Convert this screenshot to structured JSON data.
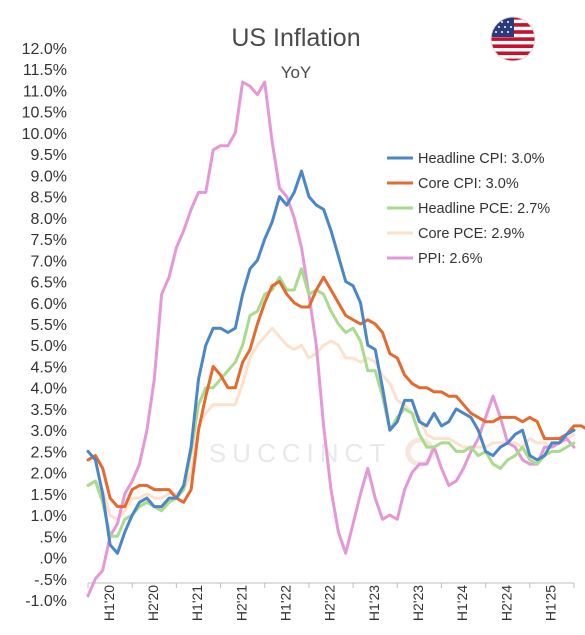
{
  "chart_data": {
    "type": "line",
    "title": "US Inflation",
    "subtitle": "YoY",
    "ylim": [
      -1.0,
      12.0
    ],
    "y_ticks": [
      "-1.0%",
      "-.5%",
      ".0%",
      ".5%",
      "1.0%",
      "1.5%",
      "2.0%",
      "2.5%",
      "3.0%",
      "3.5%",
      "4.0%",
      "4.5%",
      "5.0%",
      "5.5%",
      "6.0%",
      "6.5%",
      "7.0%",
      "7.5%",
      "8.0%",
      "8.5%",
      "9.0%",
      "9.5%",
      "10.0%",
      "10.5%",
      "11.0%",
      "11.5%",
      "12.0%"
    ],
    "y_tick_values": [
      -1.0,
      -0.5,
      0.0,
      0.5,
      1.0,
      1.5,
      2.0,
      2.5,
      3.0,
      3.5,
      4.0,
      4.5,
      5.0,
      5.5,
      6.0,
      6.5,
      7.0,
      7.5,
      8.0,
      8.5,
      9.0,
      9.5,
      10.0,
      10.5,
      11.0,
      11.5,
      12.0
    ],
    "x_ticks": [
      "H1'20",
      "H2'20",
      "H1'21",
      "H2'21",
      "H1'22",
      "H2'22",
      "H1'23",
      "H2'23",
      "H1'24",
      "H2'24",
      "H1'25"
    ],
    "x_tick_months": [
      3,
      9,
      15,
      21,
      27,
      33,
      39,
      45,
      51,
      57,
      63
    ],
    "x_month_range": [
      0,
      66
    ],
    "legend_position": "top-right",
    "watermark": "SUCCINCT",
    "series": [
      {
        "name": "Headline CPI: 3.0%",
        "color": "#4a86c8",
        "values": [
          2.5,
          2.3,
          1.5,
          0.3,
          0.1,
          0.6,
          1.0,
          1.3,
          1.4,
          1.2,
          1.2,
          1.4,
          1.4,
          1.7,
          2.6,
          4.2,
          5.0,
          5.4,
          5.4,
          5.3,
          5.4,
          6.2,
          6.8,
          7.0,
          7.5,
          7.9,
          8.5,
          8.3,
          8.6,
          9.1,
          8.5,
          8.3,
          8.2,
          7.7,
          7.1,
          6.5,
          6.4,
          6.0,
          5.0,
          4.9,
          4.0,
          3.0,
          3.2,
          3.7,
          3.7,
          3.2,
          3.1,
          3.4,
          3.1,
          3.2,
          3.5,
          3.4,
          3.3,
          3.0,
          2.5,
          2.4,
          2.6,
          2.7,
          2.9,
          3.0,
          2.4,
          2.3,
          2.4,
          2.7,
          2.7,
          2.9,
          3.0
        ],
        "label": "Headline CPI: 3.0%"
      },
      {
        "name": "Core CPI: 3.0%",
        "color": "#e46a2e",
        "values": [
          2.3,
          2.4,
          2.1,
          1.4,
          1.2,
          1.2,
          1.6,
          1.7,
          1.7,
          1.6,
          1.6,
          1.6,
          1.4,
          1.3,
          1.6,
          3.0,
          3.8,
          4.5,
          4.3,
          4.0,
          4.0,
          4.6,
          4.9,
          5.5,
          6.0,
          6.4,
          6.5,
          6.2,
          6.0,
          5.9,
          5.9,
          6.3,
          6.6,
          6.3,
          6.0,
          5.7,
          5.6,
          5.5,
          5.6,
          5.5,
          5.3,
          4.8,
          4.7,
          4.3,
          4.1,
          4.0,
          4.0,
          3.9,
          3.9,
          3.8,
          3.8,
          3.6,
          3.4,
          3.3,
          3.2,
          3.2,
          3.3,
          3.3,
          3.3,
          3.2,
          3.3,
          3.2,
          2.8,
          2.8,
          2.8,
          2.9,
          3.1,
          3.1,
          3.0
        ],
        "label": "Core CPI: 3.0%"
      },
      {
        "name": "Headline PCE: 2.7%",
        "color": "#a9db8e",
        "values": [
          1.7,
          1.8,
          1.3,
          0.5,
          0.5,
          0.9,
          1.0,
          1.2,
          1.3,
          1.2,
          1.1,
          1.3,
          1.4,
          1.6,
          2.5,
          3.6,
          4.0,
          4.0,
          4.2,
          4.4,
          4.6,
          5.0,
          5.7,
          5.8,
          6.2,
          6.3,
          6.6,
          6.3,
          6.3,
          6.8,
          6.2,
          6.3,
          6.2,
          5.8,
          5.5,
          5.3,
          5.4,
          5.1,
          4.4,
          4.4,
          3.8,
          3.0,
          3.3,
          3.5,
          3.4,
          2.9,
          2.6,
          2.6,
          2.7,
          2.7,
          2.5,
          2.5,
          2.6,
          2.4,
          2.5,
          2.2,
          2.1,
          2.3,
          2.4,
          2.6,
          2.3,
          2.2,
          2.4,
          2.5,
          2.5,
          2.6,
          2.7
        ],
        "label": "Headline PCE: 2.7%"
      },
      {
        "name": "Core PCE: 2.9%",
        "color": "#fde1cc",
        "values": [
          1.7,
          1.8,
          1.6,
          1.0,
          0.9,
          1.1,
          1.4,
          1.4,
          1.5,
          1.4,
          1.4,
          1.5,
          1.5,
          1.6,
          2.0,
          3.1,
          3.4,
          3.6,
          3.6,
          3.6,
          3.6,
          4.1,
          4.7,
          5.0,
          5.2,
          5.4,
          5.2,
          5.0,
          4.9,
          5.0,
          4.7,
          4.8,
          5.0,
          5.1,
          5.0,
          4.7,
          4.7,
          4.6,
          4.7,
          4.6,
          4.3,
          4.1,
          3.7,
          3.6,
          3.4,
          3.3,
          2.9,
          2.8,
          2.8,
          2.8,
          2.7,
          2.6,
          2.6,
          2.6,
          2.6,
          2.7,
          2.7,
          2.7,
          2.7,
          2.6,
          2.8,
          2.7,
          2.7,
          2.6,
          2.7,
          2.8,
          2.9
        ],
        "label": "Core PCE: 2.9%"
      },
      {
        "name": "PPI: 2.6%",
        "color": "#e598d7",
        "values": [
          -0.9,
          -0.5,
          -0.3,
          0.5,
          0.8,
          1.5,
          1.8,
          2.2,
          3.0,
          4.2,
          6.2,
          6.6,
          7.3,
          7.7,
          8.2,
          8.6,
          8.6,
          9.6,
          9.7,
          9.7,
          10.0,
          11.2,
          11.1,
          10.9,
          11.2,
          9.8,
          8.7,
          8.5,
          8.0,
          7.3,
          6.2,
          5.0,
          3.1,
          1.6,
          0.6,
          0.1,
          0.8,
          1.5,
          2.1,
          1.4,
          0.9,
          1.0,
          0.9,
          1.6,
          2.0,
          2.2,
          2.2,
          2.6,
          2.1,
          1.7,
          1.8,
          2.1,
          2.5,
          2.8,
          3.3,
          3.8,
          3.3,
          2.7,
          2.6,
          2.3,
          2.2,
          2.2,
          2.6,
          2.6,
          2.7,
          2.8,
          2.6
        ],
        "label": "PPI: 2.6%"
      }
    ]
  }
}
